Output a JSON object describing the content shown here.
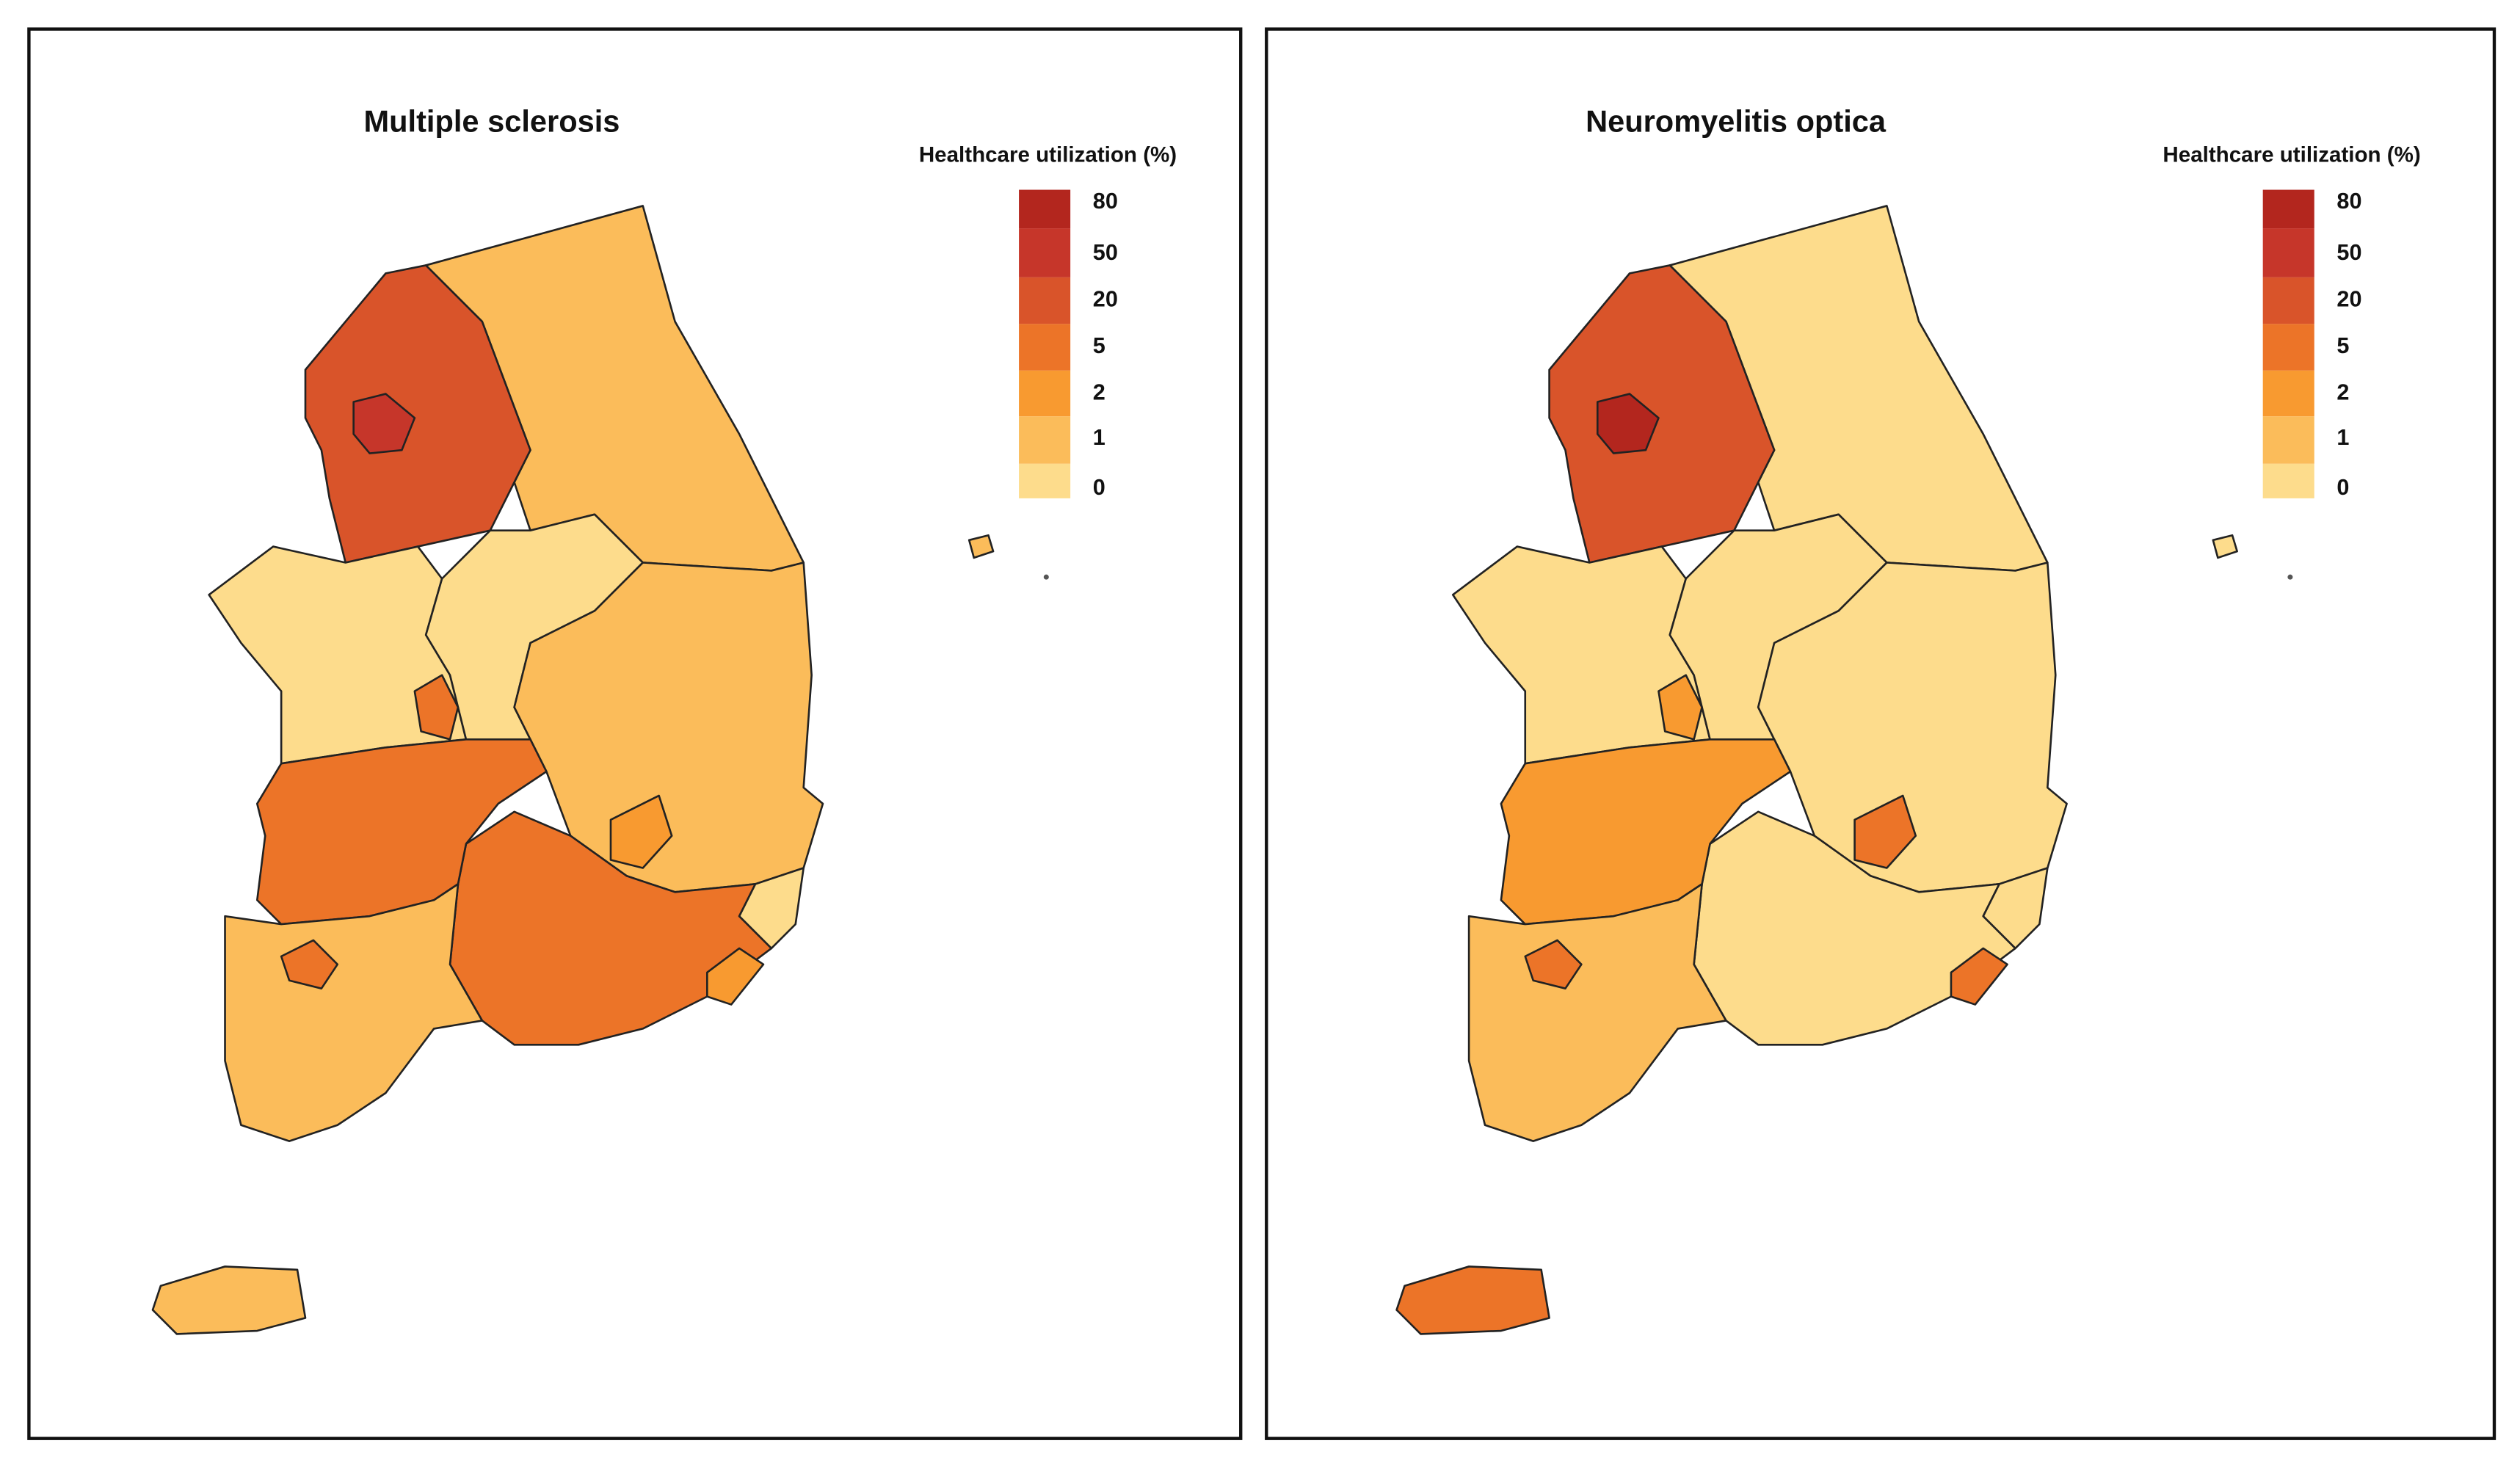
{
  "panels": [
    {
      "title": "Multiple sclerosis",
      "legend": {
        "title": "Healthcare utilization (%)",
        "labels": [
          80,
          50,
          20,
          5,
          2,
          1,
          0
        ],
        "colors": [
          "#b3261e",
          "#c6362a",
          "#d9542a",
          "#ec7428",
          "#f89a30",
          "#fbbc5a",
          "#fddc8c"
        ]
      }
    },
    {
      "title": "Neuromyelitis optica",
      "legend": {
        "title": "Healthcare utilization (%)",
        "labels": [
          80,
          50,
          20,
          5,
          2,
          1,
          0
        ],
        "colors": [
          "#b3261e",
          "#c6362a",
          "#d9542a",
          "#ec7428",
          "#f89a30",
          "#fbbc5a",
          "#fddc8c"
        ]
      }
    }
  ]
}
